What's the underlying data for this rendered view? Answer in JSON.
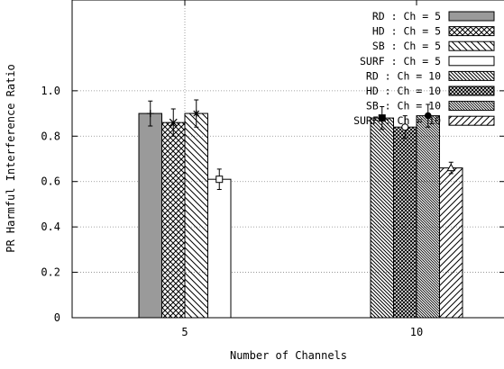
{
  "chart_data": {
    "type": "bar",
    "xlabel": "Number of Channels",
    "ylabel": "PR Harmful Interference Ratio",
    "categories": [
      "5",
      "10"
    ],
    "ylim": [
      0,
      1.4
    ],
    "yticks": [
      "0",
      "0.2",
      "0.4",
      "0.6",
      "0.8",
      "1.0"
    ],
    "grid": "dotted at 0.2 steps and at x = 5",
    "legend_position": "top-right",
    "series": [
      {
        "name": "RD : Ch = 5",
        "category": "5",
        "value": 0.9,
        "err": 0.055,
        "fill": "solid-gray",
        "marker": "plus"
      },
      {
        "name": "HD : Ch = 5",
        "category": "5",
        "value": 0.86,
        "err": 0.06,
        "fill": "crosshatch",
        "marker": "x"
      },
      {
        "name": "SB : Ch = 5",
        "category": "5",
        "value": 0.9,
        "err": 0.06,
        "fill": "diag-down",
        "marker": "star"
      },
      {
        "name": "SURF : Ch = 5",
        "category": "5",
        "value": 0.61,
        "err": 0.045,
        "fill": "empty",
        "marker": "square-open"
      },
      {
        "name": "RD : Ch = 10",
        "category": "10",
        "value": 0.88,
        "err": 0.05,
        "fill": "diag-down-dense",
        "marker": "square-filled"
      },
      {
        "name": "HD : Ch = 10",
        "category": "10",
        "value": 0.84,
        "err": 0.05,
        "fill": "crosshatch-dense",
        "marker": "circle-open"
      },
      {
        "name": "SB : Ch = 10",
        "category": "10",
        "value": 0.89,
        "err": 0.05,
        "fill": "diag-dense",
        "marker": "circle-filled"
      },
      {
        "name": "SURF : Ch = 10",
        "category": "10",
        "value": 0.66,
        "err": 0.025,
        "fill": "diag-up",
        "marker": "triangle-open"
      }
    ],
    "colors": {
      "axis": "#000000",
      "grid": "#888888",
      "solid_bar": "#9a9a9a",
      "bar_outline": "#000000"
    }
  }
}
